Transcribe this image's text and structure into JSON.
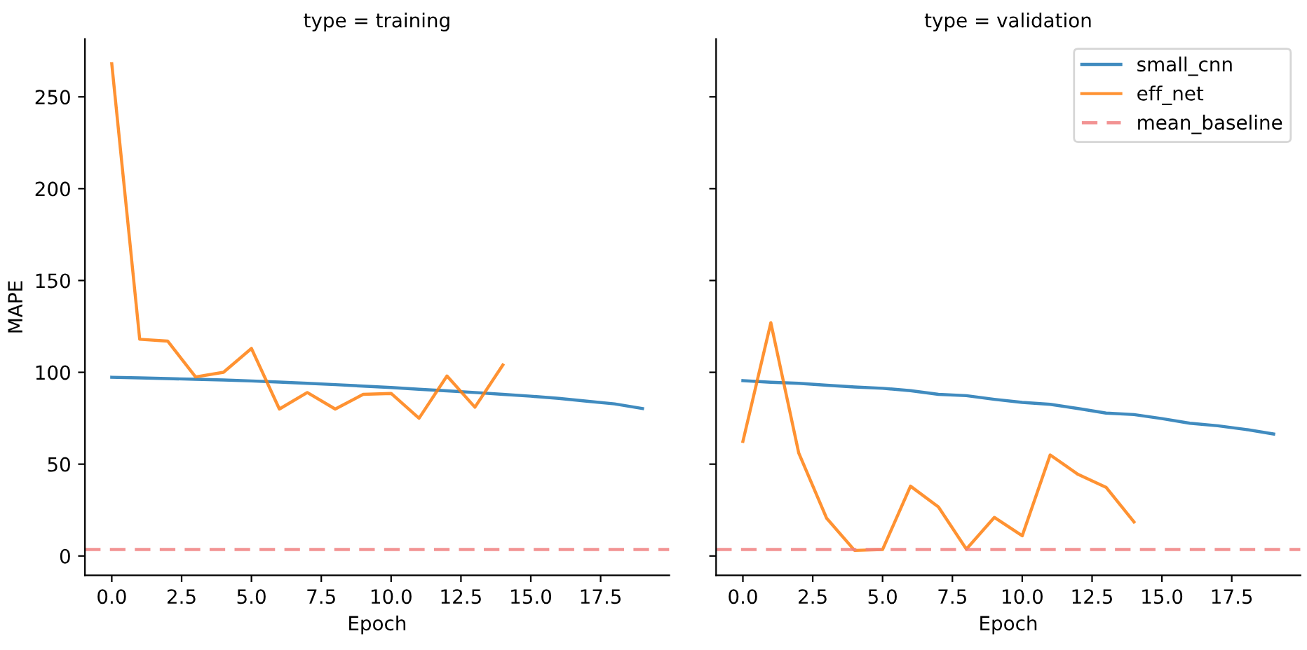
{
  "chart_data": [
    {
      "type": "line",
      "title": "type = training",
      "xlabel": "Epoch",
      "ylabel": "MAPE",
      "xlim": [
        -0.96,
        19.96
      ],
      "ylim": [
        -10.5,
        281.5
      ],
      "xticks": [
        {
          "value": 0,
          "label": "0.0"
        },
        {
          "value": 2.5,
          "label": "2.5"
        },
        {
          "value": 5,
          "label": "5.0"
        },
        {
          "value": 7.5,
          "label": "7.5"
        },
        {
          "value": 10,
          "label": "10.0"
        },
        {
          "value": 12.5,
          "label": "12.5"
        },
        {
          "value": 15,
          "label": "15.0"
        },
        {
          "value": 17.5,
          "label": "17.5"
        }
      ],
      "yticks": [
        0,
        50,
        100,
        150,
        200,
        250
      ],
      "grid": false,
      "legend": false,
      "line_style": "solid",
      "series": [
        {
          "color": "#1f77b4",
          "x": [
            0,
            1,
            2,
            3,
            4,
            5,
            6,
            7,
            8,
            9,
            10,
            11,
            12,
            13,
            14,
            15,
            16,
            17,
            18,
            19
          ],
          "values": [
            97.3,
            97,
            96.6,
            96.2,
            95.8,
            95.3,
            94.7,
            94,
            93.3,
            92.5,
            91.7,
            90.8,
            89.9,
            89,
            88,
            87,
            85.8,
            84.3,
            82.8,
            80.3
          ]
        },
        {
          "color": "#ff7f0e",
          "x": [
            0,
            1,
            2,
            3,
            4,
            5,
            6,
            7,
            8,
            9,
            10,
            11,
            12,
            13,
            14
          ],
          "values": [
            268,
            118,
            117,
            97.5,
            100,
            113,
            80,
            89,
            80,
            88,
            88.5,
            75,
            98,
            81,
            104
          ]
        }
      ],
      "ref_lines": [
        {
          "axis": "y",
          "value": 3.5,
          "color": "#f08080",
          "line_style": "dashed"
        }
      ]
    },
    {
      "type": "line",
      "title": "type = validation",
      "xlabel": "Epoch",
      "xlim": [
        -0.96,
        19.96
      ],
      "ylim": [
        -10.5,
        281.5
      ],
      "xticks": [
        {
          "value": 0,
          "label": "0.0"
        },
        {
          "value": 2.5,
          "label": "2.5"
        },
        {
          "value": 5,
          "label": "5.0"
        },
        {
          "value": 7.5,
          "label": "7.5"
        },
        {
          "value": 10,
          "label": "10.0"
        },
        {
          "value": 12.5,
          "label": "12.5"
        },
        {
          "value": 15,
          "label": "15.0"
        },
        {
          "value": 17.5,
          "label": "17.5"
        }
      ],
      "yticks": [
        0,
        50,
        100,
        150,
        200,
        250
      ],
      "tick_labels": "x",
      "grid": false,
      "legend": "top right",
      "line_style": "solid",
      "series": [
        {
          "name": "small_cnn",
          "color": "#1f77b4",
          "x": [
            0,
            1,
            2,
            3,
            4,
            5,
            6,
            7,
            8,
            9,
            10,
            11,
            12,
            13,
            14,
            15,
            16,
            17,
            18,
            19
          ],
          "values": [
            95.5,
            94.6,
            94,
            93,
            92,
            91.3,
            90,
            88,
            87.3,
            85.3,
            83.6,
            82.6,
            80.3,
            77.8,
            77,
            74.8,
            72.3,
            70.9,
            68.9,
            66.4
          ]
        },
        {
          "name": "eff_net",
          "color": "#ff7f0e",
          "x": [
            0,
            1,
            2,
            3,
            4,
            5,
            6,
            7,
            8,
            9,
            10,
            11,
            12,
            13,
            14
          ],
          "values": [
            62.4,
            127,
            56,
            20.5,
            3,
            3.5,
            38,
            26.7,
            3.7,
            21,
            11,
            55,
            44.4,
            37.4,
            18.5
          ]
        }
      ],
      "ref_lines": [
        {
          "axis": "y",
          "value": 3.5,
          "label": "mean_baseline",
          "color": "#f08080",
          "line_style": "dashed"
        }
      ]
    }
  ]
}
